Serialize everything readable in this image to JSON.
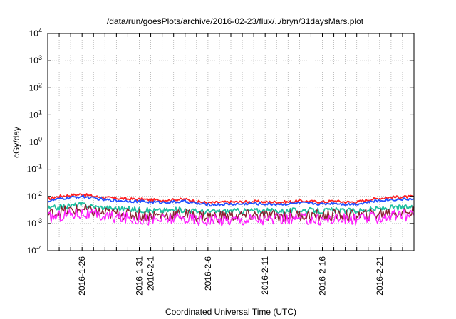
{
  "chart_data": {
    "type": "line",
    "title": "/data/run/goesPlots/archive/2016-02-23/flux/../bryn/31daysMars.plot",
    "xlabel": "Coordinated Universal Time (UTC)",
    "ylabel": "cGy/day",
    "yscale": "log",
    "ylim": [
      0.0001,
      10000
    ],
    "xlim": [
      "2016-01-23",
      "2016-02-24"
    ],
    "grid": true,
    "legend": "none",
    "y_ticks": [
      {
        "base": "10",
        "exp": "4",
        "value": 10000
      },
      {
        "base": "10",
        "exp": "3",
        "value": 1000
      },
      {
        "base": "10",
        "exp": "2",
        "value": 100
      },
      {
        "base": "10",
        "exp": "1",
        "value": 10
      },
      {
        "base": "10",
        "exp": "0",
        "value": 1
      },
      {
        "base": "10",
        "exp": "-1",
        "value": 0.1
      },
      {
        "base": "10",
        "exp": "-2",
        "value": 0.01
      },
      {
        "base": "10",
        "exp": "-3",
        "value": 0.001
      },
      {
        "base": "10",
        "exp": "-4",
        "value": 0.0001
      }
    ],
    "x_ticks": [
      {
        "label": "2016-1-26",
        "date": "2016-01-26"
      },
      {
        "label": "2016-1-31",
        "date": "2016-01-31"
      },
      {
        "label": "2016-2-1",
        "date": "2016-02-01"
      },
      {
        "label": "2016-2-6",
        "date": "2016-02-06"
      },
      {
        "label": "2016-2-11",
        "date": "2016-02-11"
      },
      {
        "label": "2016-2-16",
        "date": "2016-02-16"
      },
      {
        "label": "2016-2-21",
        "date": "2016-02-21"
      }
    ],
    "x_gridlines": [
      "2016-01-24",
      "2016-01-25",
      "2016-01-26",
      "2016-01-27",
      "2016-01-28",
      "2016-01-29",
      "2016-01-30",
      "2016-01-31",
      "2016-02-01",
      "2016-02-02",
      "2016-02-03",
      "2016-02-04",
      "2016-02-05",
      "2016-02-06",
      "2016-02-07",
      "2016-02-08",
      "2016-02-09",
      "2016-02-10",
      "2016-02-11",
      "2016-02-12",
      "2016-02-13",
      "2016-02-14",
      "2016-02-15",
      "2016-02-16",
      "2016-02-17",
      "2016-02-18",
      "2016-02-19",
      "2016-02-20",
      "2016-02-21",
      "2016-02-22",
      "2016-02-23"
    ],
    "series": [
      {
        "color": "#ff2020",
        "values": [
          {
            "x": "2016-01-23",
            "y": 0.008
          },
          {
            "x": "2016-01-24",
            "y": 0.01
          },
          {
            "x": "2016-01-25",
            "y": 0.011
          },
          {
            "x": "2016-01-26",
            "y": 0.012
          },
          {
            "x": "2016-01-27",
            "y": 0.01
          },
          {
            "x": "2016-01-28",
            "y": 0.009
          },
          {
            "x": "2016-01-29",
            "y": 0.0085
          },
          {
            "x": "2016-01-30",
            "y": 0.008
          },
          {
            "x": "2016-01-31",
            "y": 0.0078
          },
          {
            "x": "2016-02-01",
            "y": 0.0075
          },
          {
            "x": "2016-02-02",
            "y": 0.0072
          },
          {
            "x": "2016-02-03",
            "y": 0.0075
          },
          {
            "x": "2016-02-04",
            "y": 0.0078
          },
          {
            "x": "2016-02-05",
            "y": 0.0065
          },
          {
            "x": "2016-02-06",
            "y": 0.0058
          },
          {
            "x": "2016-02-07",
            "y": 0.006
          },
          {
            "x": "2016-02-08",
            "y": 0.0062
          },
          {
            "x": "2016-02-09",
            "y": 0.0062
          },
          {
            "x": "2016-02-10",
            "y": 0.0065
          },
          {
            "x": "2016-02-11",
            "y": 0.0062
          },
          {
            "x": "2016-02-12",
            "y": 0.0062
          },
          {
            "x": "2016-02-13",
            "y": 0.0062
          },
          {
            "x": "2016-02-14",
            "y": 0.0068
          },
          {
            "x": "2016-02-15",
            "y": 0.0065
          },
          {
            "x": "2016-02-16",
            "y": 0.0062
          },
          {
            "x": "2016-02-17",
            "y": 0.0068
          },
          {
            "x": "2016-02-18",
            "y": 0.0062
          },
          {
            "x": "2016-02-19",
            "y": 0.0062
          },
          {
            "x": "2016-02-20",
            "y": 0.0075
          },
          {
            "x": "2016-02-21",
            "y": 0.0085
          },
          {
            "x": "2016-02-22",
            "y": 0.0092
          },
          {
            "x": "2016-02-23",
            "y": 0.0095
          },
          {
            "x": "2016-02-24",
            "y": 0.0098
          }
        ]
      },
      {
        "color": "#2050ff",
        "values": [
          {
            "x": "2016-01-23",
            "y": 0.0065
          },
          {
            "x": "2016-01-24",
            "y": 0.008
          },
          {
            "x": "2016-01-25",
            "y": 0.009
          },
          {
            "x": "2016-01-26",
            "y": 0.01
          },
          {
            "x": "2016-01-27",
            "y": 0.0085
          },
          {
            "x": "2016-01-28",
            "y": 0.0075
          },
          {
            "x": "2016-01-29",
            "y": 0.007
          },
          {
            "x": "2016-01-30",
            "y": 0.0068
          },
          {
            "x": "2016-01-31",
            "y": 0.0065
          },
          {
            "x": "2016-02-01",
            "y": 0.0062
          },
          {
            "x": "2016-02-02",
            "y": 0.006
          },
          {
            "x": "2016-02-03",
            "y": 0.0062
          },
          {
            "x": "2016-02-04",
            "y": 0.0065
          },
          {
            "x": "2016-02-05",
            "y": 0.0055
          },
          {
            "x": "2016-02-06",
            "y": 0.0049
          },
          {
            "x": "2016-02-07",
            "y": 0.005
          },
          {
            "x": "2016-02-08",
            "y": 0.0052
          },
          {
            "x": "2016-02-09",
            "y": 0.0052
          },
          {
            "x": "2016-02-10",
            "y": 0.0055
          },
          {
            "x": "2016-02-11",
            "y": 0.0052
          },
          {
            "x": "2016-02-12",
            "y": 0.0052
          },
          {
            "x": "2016-02-13",
            "y": 0.0052
          },
          {
            "x": "2016-02-14",
            "y": 0.0057
          },
          {
            "x": "2016-02-15",
            "y": 0.0055
          },
          {
            "x": "2016-02-16",
            "y": 0.0052
          },
          {
            "x": "2016-02-17",
            "y": 0.0057
          },
          {
            "x": "2016-02-18",
            "y": 0.0052
          },
          {
            "x": "2016-02-19",
            "y": 0.0052
          },
          {
            "x": "2016-02-20",
            "y": 0.0062
          },
          {
            "x": "2016-02-21",
            "y": 0.007
          },
          {
            "x": "2016-02-22",
            "y": 0.0076
          },
          {
            "x": "2016-02-23",
            "y": 0.0078
          },
          {
            "x": "2016-02-24",
            "y": 0.008
          }
        ]
      },
      {
        "color": "#20c0a0",
        "values": [
          {
            "x": "2016-01-23",
            "y": 0.0035
          },
          {
            "x": "2016-01-24",
            "y": 0.004
          },
          {
            "x": "2016-01-25",
            "y": 0.0045
          },
          {
            "x": "2016-01-26",
            "y": 0.005
          },
          {
            "x": "2016-01-27",
            "y": 0.0042
          },
          {
            "x": "2016-01-28",
            "y": 0.0038
          },
          {
            "x": "2016-01-29",
            "y": 0.0036
          },
          {
            "x": "2016-01-30",
            "y": 0.0034
          },
          {
            "x": "2016-01-31",
            "y": 0.0032
          },
          {
            "x": "2016-02-01",
            "y": 0.003
          },
          {
            "x": "2016-02-02",
            "y": 0.003
          },
          {
            "x": "2016-02-03",
            "y": 0.0031
          },
          {
            "x": "2016-02-04",
            "y": 0.0032
          },
          {
            "x": "2016-02-05",
            "y": 0.0028
          },
          {
            "x": "2016-02-06",
            "y": 0.0027
          },
          {
            "x": "2016-02-07",
            "y": 0.0028
          },
          {
            "x": "2016-02-08",
            "y": 0.0029
          },
          {
            "x": "2016-02-09",
            "y": 0.0029
          },
          {
            "x": "2016-02-10",
            "y": 0.003
          },
          {
            "x": "2016-02-11",
            "y": 0.0029
          },
          {
            "x": "2016-02-12",
            "y": 0.0029
          },
          {
            "x": "2016-02-13",
            "y": 0.0029
          },
          {
            "x": "2016-02-14",
            "y": 0.0031
          },
          {
            "x": "2016-02-15",
            "y": 0.003
          },
          {
            "x": "2016-02-16",
            "y": 0.0029
          },
          {
            "x": "2016-02-17",
            "y": 0.0031
          },
          {
            "x": "2016-02-18",
            "y": 0.0029
          },
          {
            "x": "2016-02-19",
            "y": 0.0029
          },
          {
            "x": "2016-02-20",
            "y": 0.0032
          },
          {
            "x": "2016-02-21",
            "y": 0.0035
          },
          {
            "x": "2016-02-22",
            "y": 0.0038
          },
          {
            "x": "2016-02-23",
            "y": 0.0039
          },
          {
            "x": "2016-02-24",
            "y": 0.004
          }
        ]
      },
      {
        "color": "#8b2030",
        "values": [
          {
            "x": "2016-01-23",
            "y": 0.0022
          },
          {
            "x": "2016-01-24",
            "y": 0.0026
          },
          {
            "x": "2016-01-25",
            "y": 0.003
          },
          {
            "x": "2016-01-26",
            "y": 0.0032
          },
          {
            "x": "2016-01-27",
            "y": 0.0027
          },
          {
            "x": "2016-01-28",
            "y": 0.0024
          },
          {
            "x": "2016-01-29",
            "y": 0.0023
          },
          {
            "x": "2016-01-30",
            "y": 0.0022
          },
          {
            "x": "2016-01-31",
            "y": 0.0021
          },
          {
            "x": "2016-02-01",
            "y": 0.002
          },
          {
            "x": "2016-02-02",
            "y": 0.002
          },
          {
            "x": "2016-02-03",
            "y": 0.002
          },
          {
            "x": "2016-02-04",
            "y": 0.0021
          },
          {
            "x": "2016-02-05",
            "y": 0.0019
          },
          {
            "x": "2016-02-06",
            "y": 0.0018
          },
          {
            "x": "2016-02-07",
            "y": 0.0018
          },
          {
            "x": "2016-02-08",
            "y": 0.0019
          },
          {
            "x": "2016-02-09",
            "y": 0.0019
          },
          {
            "x": "2016-02-10",
            "y": 0.002
          },
          {
            "x": "2016-02-11",
            "y": 0.0019
          },
          {
            "x": "2016-02-12",
            "y": 0.0019
          },
          {
            "x": "2016-02-13",
            "y": 0.0019
          },
          {
            "x": "2016-02-14",
            "y": 0.002
          },
          {
            "x": "2016-02-15",
            "y": 0.002
          },
          {
            "x": "2016-02-16",
            "y": 0.0019
          },
          {
            "x": "2016-02-17",
            "y": 0.002
          },
          {
            "x": "2016-02-18",
            "y": 0.0019
          },
          {
            "x": "2016-02-19",
            "y": 0.0019
          },
          {
            "x": "2016-02-20",
            "y": 0.0021
          },
          {
            "x": "2016-02-21",
            "y": 0.0023
          },
          {
            "x": "2016-02-22",
            "y": 0.0025
          },
          {
            "x": "2016-02-23",
            "y": 0.0026
          },
          {
            "x": "2016-02-24",
            "y": 0.0027
          }
        ]
      },
      {
        "color": "#ff20ff",
        "values": [
          {
            "x": "2016-01-23",
            "y": 0.0016
          },
          {
            "x": "2016-01-24",
            "y": 0.0019
          },
          {
            "x": "2016-01-25",
            "y": 0.0022
          },
          {
            "x": "2016-01-26",
            "y": 0.0024
          },
          {
            "x": "2016-01-27",
            "y": 0.002
          },
          {
            "x": "2016-01-28",
            "y": 0.0018
          },
          {
            "x": "2016-01-29",
            "y": 0.0017
          },
          {
            "x": "2016-01-30",
            "y": 0.0016
          },
          {
            "x": "2016-01-31",
            "y": 0.0015
          },
          {
            "x": "2016-02-01",
            "y": 0.0014
          },
          {
            "x": "2016-02-02",
            "y": 0.0014
          },
          {
            "x": "2016-02-03",
            "y": 0.0015
          },
          {
            "x": "2016-02-04",
            "y": 0.0015
          },
          {
            "x": "2016-02-05",
            "y": 0.0014
          },
          {
            "x": "2016-02-06",
            "y": 0.0013
          },
          {
            "x": "2016-02-07",
            "y": 0.0013
          },
          {
            "x": "2016-02-08",
            "y": 0.0014
          },
          {
            "x": "2016-02-09",
            "y": 0.0014
          },
          {
            "x": "2016-02-10",
            "y": 0.0015
          },
          {
            "x": "2016-02-11",
            "y": 0.0014
          },
          {
            "x": "2016-02-12",
            "y": 0.0014
          },
          {
            "x": "2016-02-13",
            "y": 0.0014
          },
          {
            "x": "2016-02-14",
            "y": 0.0015
          },
          {
            "x": "2016-02-15",
            "y": 0.0014
          },
          {
            "x": "2016-02-16",
            "y": 0.0014
          },
          {
            "x": "2016-02-17",
            "y": 0.0015
          },
          {
            "x": "2016-02-18",
            "y": 0.0014
          },
          {
            "x": "2016-02-19",
            "y": 0.0014
          },
          {
            "x": "2016-02-20",
            "y": 0.0016
          },
          {
            "x": "2016-02-21",
            "y": 0.0017
          },
          {
            "x": "2016-02-22",
            "y": 0.0019
          },
          {
            "x": "2016-02-23",
            "y": 0.002
          },
          {
            "x": "2016-02-24",
            "y": 0.002
          }
        ]
      }
    ]
  }
}
